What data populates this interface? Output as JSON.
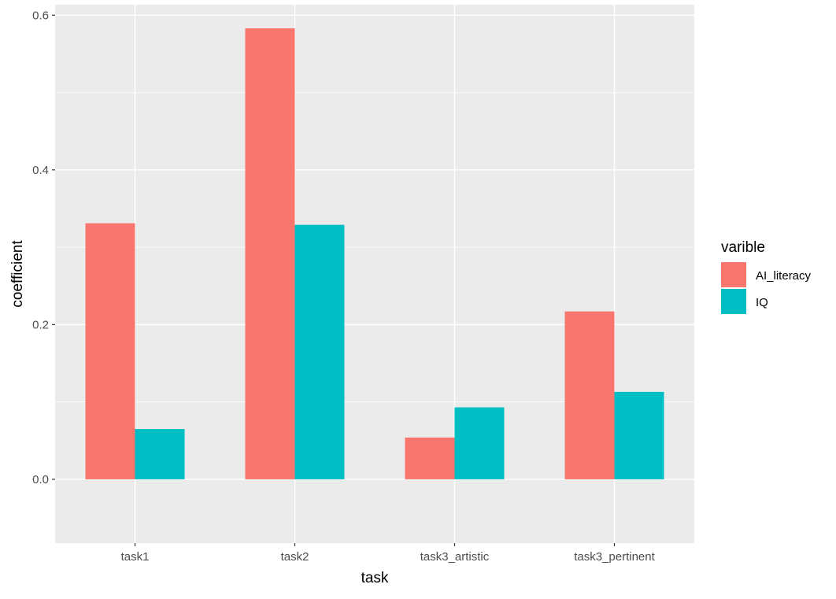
{
  "chart_data": {
    "type": "bar",
    "xlabel": "task",
    "ylabel": "coefficient",
    "categories": [
      "task1",
      "task2",
      "task3_artistic",
      "task3_pertinent"
    ],
    "series": [
      {
        "name": "AI_literacy",
        "color": "#F8766D",
        "values": [
          0.331,
          0.583,
          0.054,
          0.217
        ]
      },
      {
        "name": "IQ",
        "color": "#00BFC4",
        "values": [
          0.065,
          0.329,
          0.093,
          0.113
        ]
      }
    ],
    "ylim": [
      -0.0825,
      0.6135
    ],
    "yticks": [
      0.0,
      0.2,
      0.4,
      0.6
    ],
    "ytick_labels": [
      "0.0",
      "0.2",
      "0.4",
      "0.6"
    ],
    "legend": {
      "title": "varible",
      "position": "right"
    },
    "grid": true,
    "panel_color": "#EBEBEB"
  }
}
